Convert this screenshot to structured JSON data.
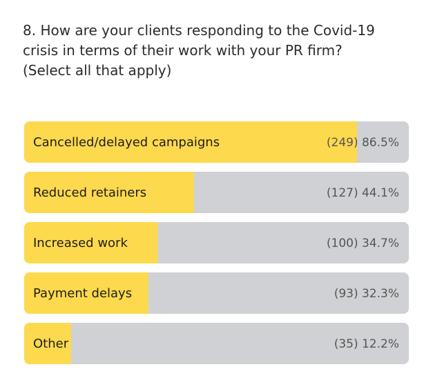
{
  "chart_data": {
    "type": "bar",
    "orientation": "horizontal",
    "title": "8. How are your clients responding to the Covid-19\ncrisis in terms of their work with your PR firm?\n(Select all that apply)",
    "categories": [
      "Cancelled/delayed campaigns",
      "Reduced retainers",
      "Increased work",
      "Payment delays",
      "Other"
    ],
    "values": [
      86.5,
      44.1,
      34.7,
      32.3,
      12.2
    ],
    "value_labels": [
      "(249) 86.5%",
      "(127) 44.1%",
      "(100) 34.7%",
      "(93) 32.3%",
      "(35) 12.2%"
    ],
    "xlim": [
      0,
      100
    ],
    "color": "#fdd94d",
    "track_color": "#cfd1d4"
  }
}
